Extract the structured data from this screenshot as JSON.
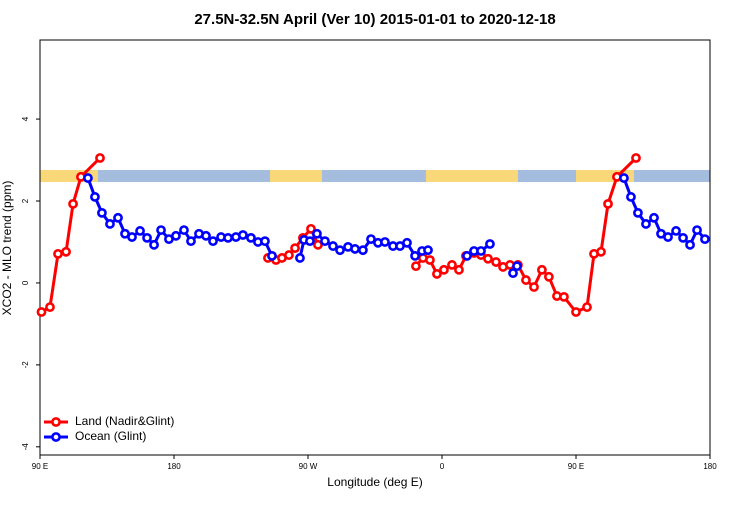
{
  "chart_data": {
    "type": "line",
    "title": "27.5N-32.5N April (Ver 10)   2015-01-01 to 2020-12-18",
    "x_label": "Longitude (deg E)",
    "y_label": "XCO2 - MLO trend (ppm)",
    "xlim": [
      90,
      540
    ],
    "ylim": [
      -4.2,
      5.93
    ],
    "xticks": [
      {
        "value": 90,
        "label": "90 E"
      },
      180,
      {
        "value": 270,
        "label": "90 W"
      },
      {
        "value": 360,
        "label": "0"
      },
      {
        "value": 450,
        "label": "90 E"
      },
      {
        "value": 540,
        "label": "180"
      }
    ],
    "yticks": [
      -4,
      -2,
      0,
      2,
      4
    ],
    "legend": "bottomleft",
    "series": [
      {
        "name": "Land (Nadir&Glint)",
        "color": "#ff0000",
        "x": [
          91,
          96.7,
          102.1,
          107.5,
          112.2,
          117.5,
          130.3,
          null,
          243.1,
          248.5,
          252.5,
          257.2,
          261.3,
          266.6,
          272.0,
          276.7,
          null,
          342.5,
          347.2,
          351.9,
          356.6,
          361.3,
          366.7,
          371.4,
          376.1,
          381.5,
          386.2,
          390.9,
          396.3,
          401.0,
          405.7,
          411.0,
          416.4,
          421.8,
          427.1,
          431.8,
          437.2,
          441.9,
          450.0,
          457.4,
          462.1,
          466.8,
          471.5,
          477.5,
          490.3
        ],
        "values": [
          -0.71,
          -0.59,
          0.71,
          0.76,
          1.93,
          2.59,
          3.05,
          null,
          0.61,
          0.56,
          0.61,
          0.68,
          0.85,
          1.1,
          1.32,
          0.93,
          null,
          0.41,
          0.61,
          0.56,
          0.22,
          0.32,
          0.44,
          0.32,
          0.66,
          0.73,
          0.68,
          0.59,
          0.51,
          0.39,
          0.44,
          0.44,
          0.07,
          -0.1,
          0.32,
          0.15,
          -0.32,
          -0.34,
          -0.71,
          -0.59,
          0.71,
          0.76,
          1.93,
          2.59,
          3.05
        ]
      },
      {
        "name": "Ocean (Glint)",
        "color": "#0000ff",
        "x": [
          122.2,
          126.9,
          131.6,
          137.0,
          142.4,
          147.1,
          151.8,
          157.2,
          161.9,
          166.6,
          171.3,
          176.6,
          181.3,
          186.7,
          191.4,
          196.8,
          201.5,
          206.2,
          211.6,
          216.3,
          221.6,
          226.3,
          231.7,
          236.4,
          241.1,
          245.8,
          null,
          264.6,
          267.3,
          271.3,
          276.0,
          281.4,
          286.8,
          291.5,
          296.9,
          301.6,
          306.9,
          312.3,
          317.0,
          321.7,
          327.1,
          331.8,
          336.5,
          341.9,
          346.6,
          350.6,
          null,
          376.8,
          381.5,
          386.2,
          392.2,
          null,
          407.7,
          410.4,
          null,
          482.2,
          486.9,
          491.6,
          497.0,
          502.4,
          507.1,
          511.8,
          517.2,
          521.9,
          526.6,
          531.3,
          536.6
        ],
        "values": [
          2.56,
          2.1,
          1.71,
          1.44,
          1.59,
          1.2,
          1.12,
          1.27,
          1.1,
          0.93,
          1.29,
          1.07,
          1.15,
          1.29,
          1.02,
          1.2,
          1.15,
          1.02,
          1.12,
          1.1,
          1.12,
          1.17,
          1.1,
          1.0,
          1.02,
          0.66,
          null,
          0.61,
          1.05,
          1.02,
          1.2,
          1.02,
          0.9,
          0.8,
          0.88,
          0.83,
          0.8,
          1.07,
          0.98,
          1.0,
          0.9,
          0.9,
          0.98,
          0.66,
          0.78,
          0.8,
          null,
          0.66,
          0.78,
          0.78,
          0.95,
          null,
          0.24,
          0.41,
          null,
          2.56,
          2.1,
          1.71,
          1.44,
          1.59,
          1.2,
          1.12,
          1.27,
          1.1,
          0.93,
          1.29,
          1.07
        ]
      }
    ]
  }
}
